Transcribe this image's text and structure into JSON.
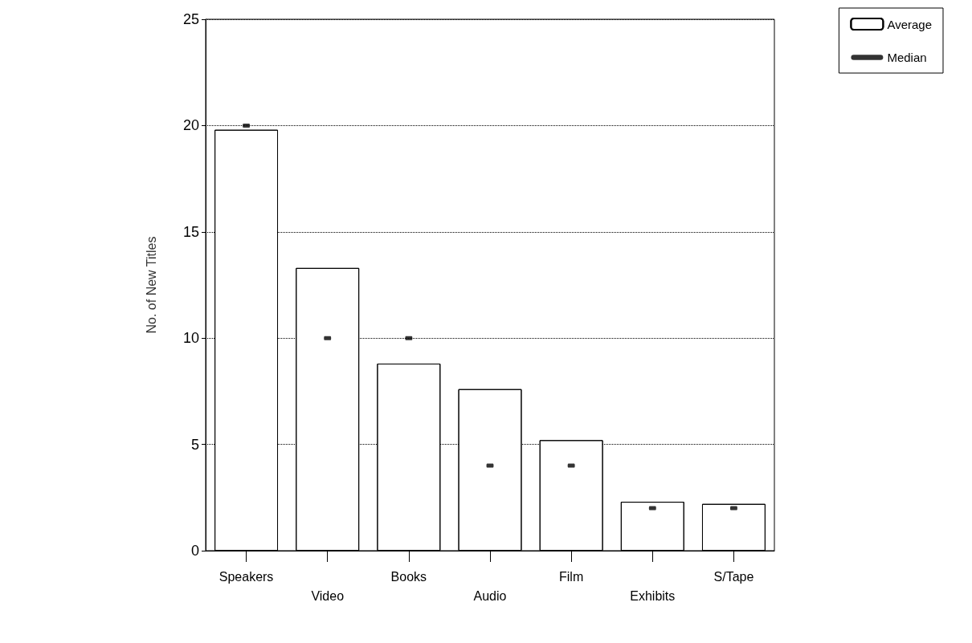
{
  "chart_data": {
    "type": "bar",
    "ylabel": "No. of New Titles",
    "categories": [
      "Speakers",
      "Video",
      "Books",
      "Audio",
      "Film",
      "Exhibits",
      "S/Tape"
    ],
    "series": [
      {
        "name": "Average",
        "color": "#ffffff",
        "values": [
          19.8,
          13.3,
          8.8,
          7.6,
          5.2,
          2.3,
          2.2
        ]
      },
      {
        "name": "Median",
        "type": "scatter",
        "color": "#000000",
        "x": [
          "Speakers",
          "Video",
          "Books",
          "Audio",
          "Film",
          "Exhibits",
          "S/Tape"
        ],
        "values": [
          20,
          10,
          10,
          4,
          4,
          2,
          2
        ]
      }
    ],
    "ylim": [
      0,
      25
    ],
    "yticks": [
      0,
      5,
      10,
      15,
      20,
      25
    ],
    "grid": "y",
    "legend": "top right"
  }
}
